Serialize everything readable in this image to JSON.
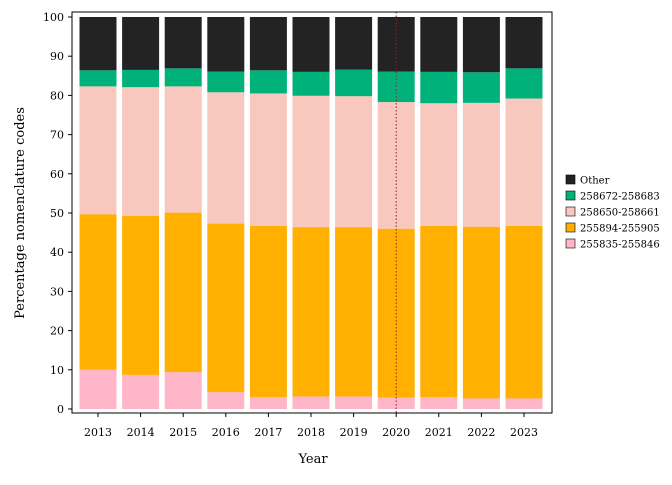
{
  "chart_data": {
    "type": "bar",
    "stacked": true,
    "xlabel": "Year",
    "ylabel": "Percentage nomenclature codes",
    "ylim": [
      0,
      100
    ],
    "yticks": [
      0,
      10,
      20,
      30,
      40,
      50,
      60,
      70,
      80,
      90,
      100
    ],
    "categories": [
      "2013",
      "2014",
      "2015",
      "2016",
      "2017",
      "2018",
      "2019",
      "2020",
      "2021",
      "2022",
      "2023"
    ],
    "series": [
      {
        "name": "255835-255846",
        "color": "#FFB6C8",
        "values": [
          10.0,
          8.7,
          9.4,
          4.3,
          3.0,
          3.2,
          3.2,
          2.9,
          3.0,
          2.7,
          2.7
        ]
      },
      {
        "name": "255894-255905",
        "color": "#FFB000",
        "values": [
          39.7,
          40.6,
          40.7,
          43.0,
          43.7,
          43.2,
          43.2,
          43.1,
          43.7,
          43.8,
          44.0
        ]
      },
      {
        "name": "258650-258661",
        "color": "#F8C8BE",
        "values": [
          32.6,
          32.8,
          32.2,
          33.5,
          33.8,
          33.5,
          33.4,
          32.3,
          31.3,
          31.6,
          32.5
        ]
      },
      {
        "name": "258672-258683",
        "color": "#00B27A",
        "values": [
          4.1,
          4.4,
          4.6,
          5.3,
          5.9,
          6.1,
          6.8,
          7.8,
          8.0,
          7.8,
          7.7
        ]
      },
      {
        "name": "Other",
        "color": "#232323",
        "values": [
          13.6,
          13.5,
          13.1,
          13.9,
          13.6,
          14.0,
          13.4,
          13.9,
          14.0,
          14.1,
          13.1
        ]
      }
    ],
    "legend_order": [
      "Other",
      "258672-258683",
      "258650-258661",
      "255894-255905",
      "255835-255846"
    ],
    "legend_position": "right",
    "reference_line": {
      "category": "2020",
      "style": "dotted",
      "color": "#8B2323"
    },
    "grid": false
  }
}
